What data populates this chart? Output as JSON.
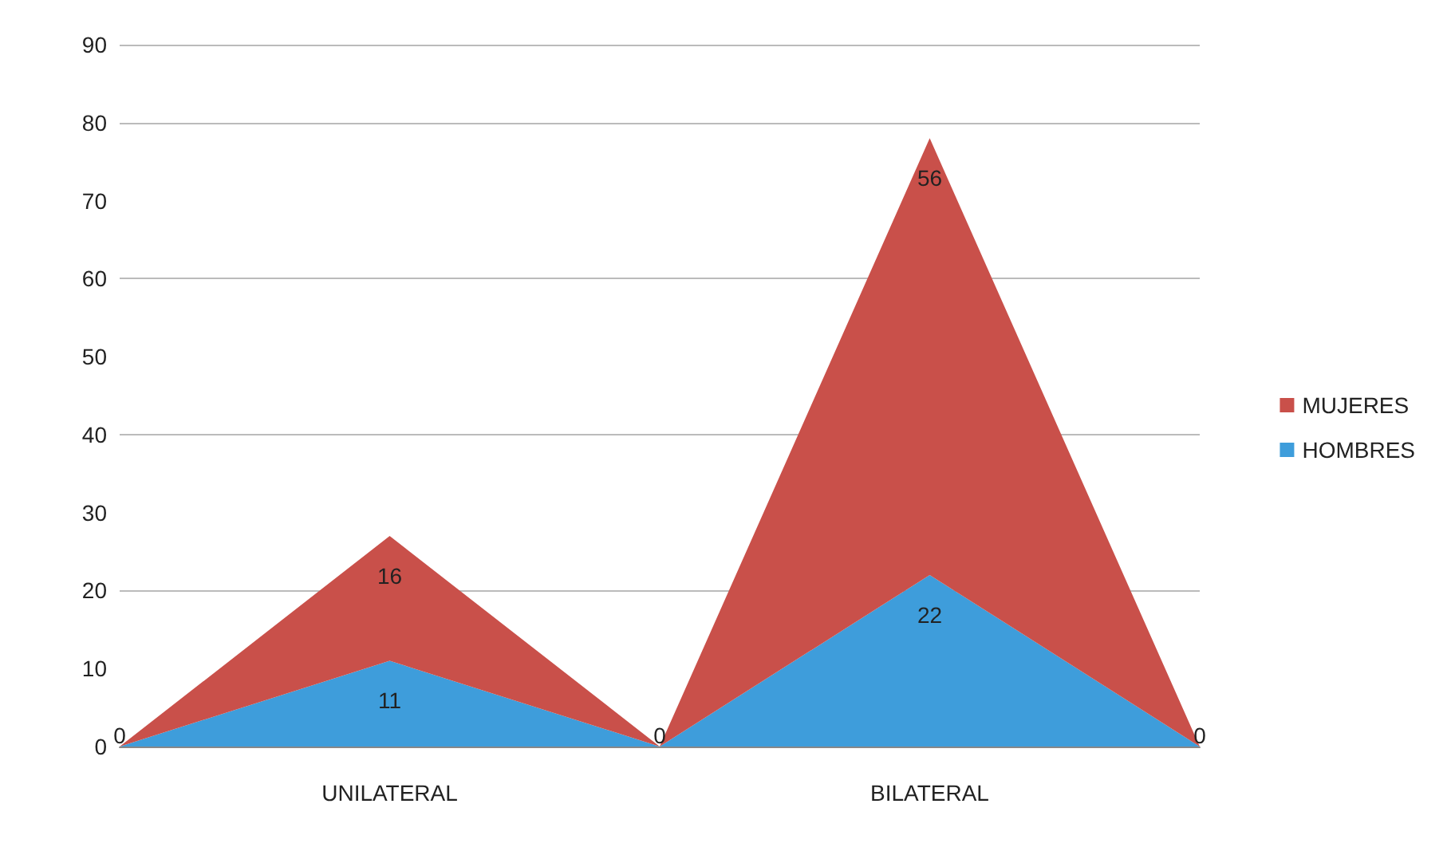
{
  "chart_data": {
    "type": "area",
    "stacked": true,
    "categories": [
      null,
      "UNILATERAL",
      null,
      "BILATERAL",
      null
    ],
    "series": [
      {
        "name": "HOMBRES",
        "color": "#3e9ddb",
        "values": [
          0,
          11,
          0,
          22,
          0
        ],
        "value_labels": [
          "0",
          "11",
          "0",
          "22",
          "0"
        ]
      },
      {
        "name": "MUJERES",
        "color": "#c9504a",
        "values": [
          0,
          16,
          0,
          56,
          0
        ],
        "value_labels": [
          null,
          "16",
          null,
          "56",
          null
        ]
      }
    ],
    "ylim": [
      0,
      90
    ],
    "yticks": [
      0,
      10,
      20,
      30,
      40,
      50,
      60,
      70,
      80,
      90
    ],
    "grid": "y",
    "legend": "right",
    "marker": "none"
  }
}
